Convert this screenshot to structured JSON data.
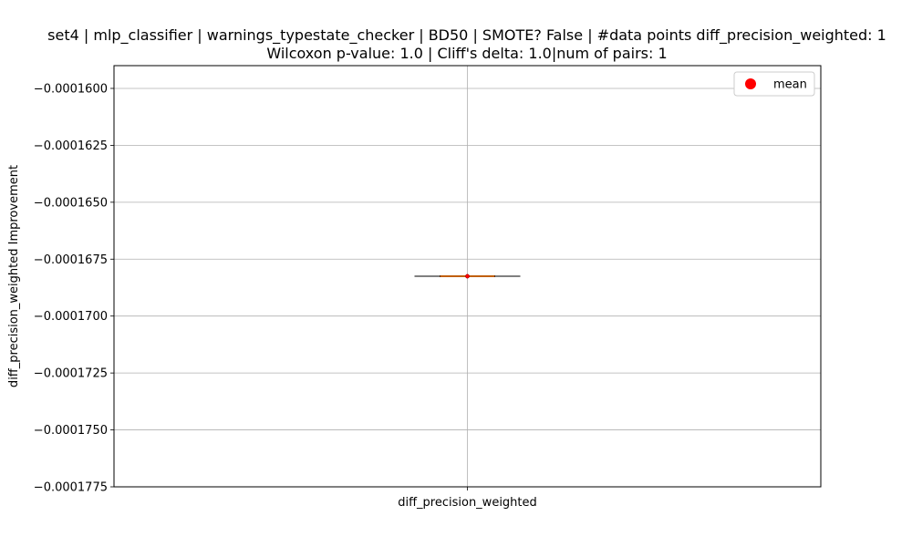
{
  "chart_data": {
    "type": "box",
    "title_line1": "set4 | mlp_classifier | warnings_typestate_checker | BD50 | SMOTE? False | #data points diff_precision_weighted: 1",
    "title_line2": "Wilcoxon p-value: 1.0 | Cliff's delta: 1.0|num of pairs: 1",
    "xlabel": "",
    "ylabel": "diff_precision_weighted Improvement",
    "categories": [
      "diff_precision_weighted"
    ],
    "box": {
      "min": -0.00016825,
      "q1": -0.00016825,
      "median": -0.00016825,
      "q3": -0.00016825,
      "max": -0.00016825,
      "mean": -0.00016825
    },
    "ylim": [
      -0.0001775,
      -0.000159
    ],
    "yticks": [
      -0.00016,
      -0.0001625,
      -0.000165,
      -0.0001675,
      -0.00017,
      -0.0001725,
      -0.000175,
      -0.0001775
    ],
    "ytick_labels": [
      "−0.0001600",
      "−0.0001625",
      "−0.0001650",
      "−0.0001675",
      "−0.0001700",
      "−0.0001725",
      "−0.0001750",
      "−0.0001775"
    ],
    "grid": true,
    "legend": {
      "position": "top-right",
      "entries": [
        "mean"
      ]
    },
    "colors": {
      "median": "#ff7f0e",
      "mean": "#ff0000",
      "grid": "#b0b0b0",
      "box": "#000000"
    }
  }
}
